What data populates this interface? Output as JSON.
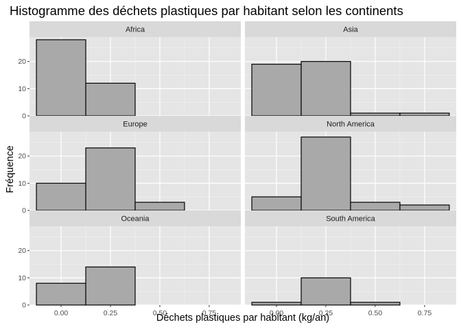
{
  "chart_data": {
    "type": "bar",
    "title": "Histogramme des déchets plastiques par habitant selon les continents",
    "xlabel": "Déchets plastiques par habitant (kg/an)",
    "ylabel": "Fréquence",
    "bin_width": 0.25,
    "bins": [
      [
        -0.125,
        0.125
      ],
      [
        0.125,
        0.375
      ],
      [
        0.375,
        0.625
      ],
      [
        0.625,
        0.875
      ]
    ],
    "xlim": [
      -0.16,
      0.91
    ],
    "ylim": [
      0,
      29
    ],
    "x_ticks": [
      "0.00",
      "0.25",
      "0.50",
      "0.75"
    ],
    "y_ticks": [
      "0",
      "10",
      "20"
    ],
    "grid": true,
    "facets": [
      {
        "name": "Africa",
        "values": [
          28,
          12,
          0,
          0
        ]
      },
      {
        "name": "Asia",
        "values": [
          19,
          20,
          1,
          1
        ]
      },
      {
        "name": "Europe",
        "values": [
          10,
          23,
          3,
          0
        ]
      },
      {
        "name": "North America",
        "values": [
          5,
          27,
          3,
          2
        ]
      },
      {
        "name": "Oceania",
        "values": [
          8,
          14,
          0,
          0
        ]
      },
      {
        "name": "South America",
        "values": [
          1,
          10,
          1,
          0
        ]
      }
    ],
    "colors": {
      "panel_background": "#e5e5e5",
      "strip_background": "#d9d9d9",
      "bar_fill": "#a9a9a9",
      "bar_stroke": "#000000",
      "grid_major": "#ffffff",
      "tick_label": "#4d4d4d"
    }
  }
}
